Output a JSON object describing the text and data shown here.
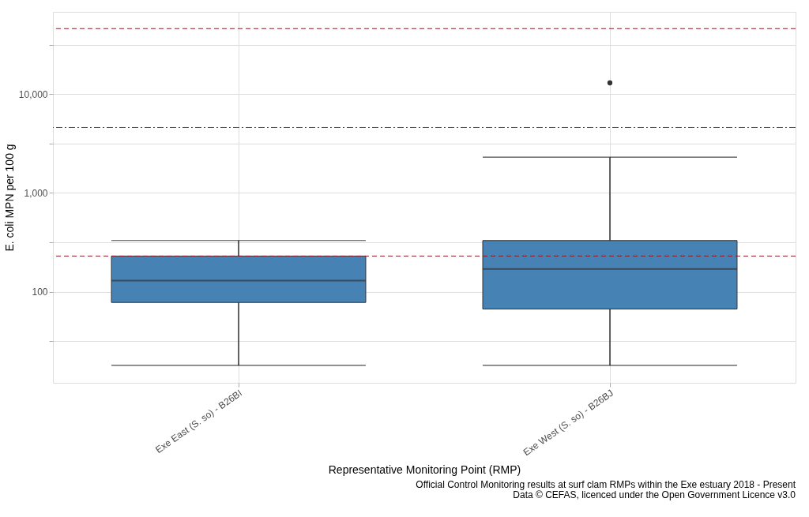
{
  "chart_data": {
    "type": "box",
    "xlabel": "Representative Monitoring Point (RMP)",
    "ylabel": "E. coli MPN per 100 g",
    "categories": [
      "Exe East  (S. so) - B26BI",
      "Exe West (S. so) - B26BJ"
    ],
    "boxes": [
      {
        "low": 18,
        "q1": 78,
        "median": 130,
        "q3": 230,
        "high": 330
      },
      {
        "low": 18,
        "q1": 67,
        "median": 170,
        "q3": 330,
        "high": 2300,
        "outliers": [
          13000
        ]
      }
    ],
    "color": "#4682b4",
    "log": true,
    "ylim": [
      12,
      68000
    ],
    "yticks": [
      {
        "value": 31.6,
        "label": null
      },
      {
        "value": 100,
        "label": "100"
      },
      {
        "value": 316,
        "label": null
      },
      {
        "value": 1000,
        "label": "1,000"
      },
      {
        "value": 3162,
        "label": null
      },
      {
        "value": 10000,
        "label": "10,000"
      },
      {
        "value": 31623,
        "label": null
      }
    ],
    "grid": true,
    "ref_lines": [
      {
        "axis": "y",
        "value": 46000,
        "label": null,
        "color": "#8b1a2b",
        "line_style": "dashed"
      },
      {
        "axis": "y",
        "value": 4600,
        "label": null,
        "color": "#ff0000",
        "line_style": "dashdot"
      },
      {
        "axis": "y",
        "value": 230,
        "label": null,
        "color": "#8b1a2b",
        "line_style": "dashed"
      }
    ],
    "annotations": [
      "Official Control Monitoring results at surf clam RMPs within the Exe estuary 2018 - Present",
      "Data © CEFAS, licenced under the Open Government Licence v3.0"
    ]
  }
}
